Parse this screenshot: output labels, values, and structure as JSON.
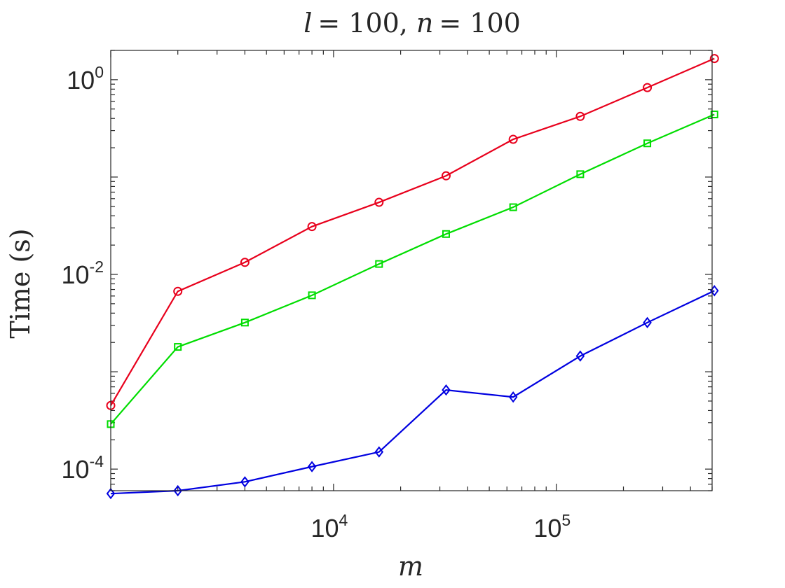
{
  "chart_data": {
    "type": "line",
    "title": {
      "l_var": "l",
      "l_value": "= 100,",
      "n_var": "n",
      "n_value": "= 100"
    },
    "xlabel": "m",
    "ylabel": "Time (s)",
    "xscale": "log",
    "yscale": "log",
    "xlim": [
      1000,
      500000
    ],
    "ylim": [
      6e-05,
      2
    ],
    "grid": false,
    "legend": "none",
    "x_ticks": [
      {
        "value": 10000,
        "base": "10",
        "exp": "4"
      },
      {
        "value": 100000,
        "base": "10",
        "exp": "5"
      }
    ],
    "y_ticks": [
      {
        "value": 0.0001,
        "base": "10",
        "exp": "-4"
      },
      {
        "value": 0.01,
        "base": "10",
        "exp": "-2"
      },
      {
        "value": 1,
        "base": "10",
        "exp": "0"
      }
    ],
    "x": [
      1000,
      2000,
      4000,
      8000,
      16000,
      32000,
      64000,
      128000,
      256000,
      512000
    ],
    "series": [
      {
        "color": "#e8001c",
        "marker": "circle",
        "values": [
          0.00045,
          0.0067,
          0.0133,
          0.031,
          0.055,
          0.103,
          0.244,
          0.42,
          0.83,
          1.65
        ]
      },
      {
        "color": "#00dd00",
        "marker": "square",
        "values": [
          0.00029,
          0.0018,
          0.0032,
          0.0061,
          0.0128,
          0.026,
          0.049,
          0.107,
          0.222,
          0.44
        ]
      },
      {
        "color": "#0000e0",
        "marker": "diamond",
        "values": [
          5.6e-05,
          6e-05,
          7.4e-05,
          0.000106,
          0.00015,
          0.00065,
          0.00055,
          0.00145,
          0.0032,
          0.0068
        ]
      }
    ]
  }
}
